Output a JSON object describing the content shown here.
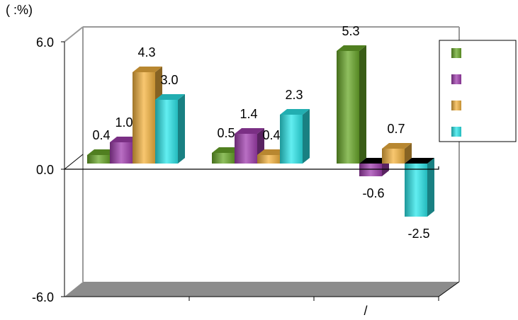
{
  "chart_data": {
    "type": "bar",
    "unit_label": "(      :%)",
    "categories": [
      "",
      "",
      "/"
    ],
    "ylim": [
      -6.0,
      6.0
    ],
    "y_ticks": [
      "6.0",
      "0.0",
      "-6.0"
    ],
    "series": [
      {
        "values": [
          0.4,
          0.5,
          5.3
        ],
        "labels": [
          "0.4",
          "0.5",
          "5.3"
        ],
        "color": "#6aa92a"
      },
      {
        "values": [
          1.0,
          1.4,
          -0.6
        ],
        "labels": [
          "1.0",
          "1.4",
          "-0.6"
        ],
        "color": "#a23fb0"
      },
      {
        "values": [
          4.3,
          0.4,
          0.7
        ],
        "labels": [
          "4.3",
          "0.4",
          "0.7"
        ],
        "color": "#f5b440"
      },
      {
        "values": [
          3.0,
          2.3,
          -2.5
        ],
        "labels": [
          "3.0",
          "2.3",
          "-2.5"
        ],
        "color": "#2de8ec"
      }
    ],
    "legend_position": "top-right",
    "grid": false,
    "colors": {
      "floor": "#8c8c8c",
      "frame": "#9a9a9a",
      "zero_line": "#000000"
    }
  }
}
